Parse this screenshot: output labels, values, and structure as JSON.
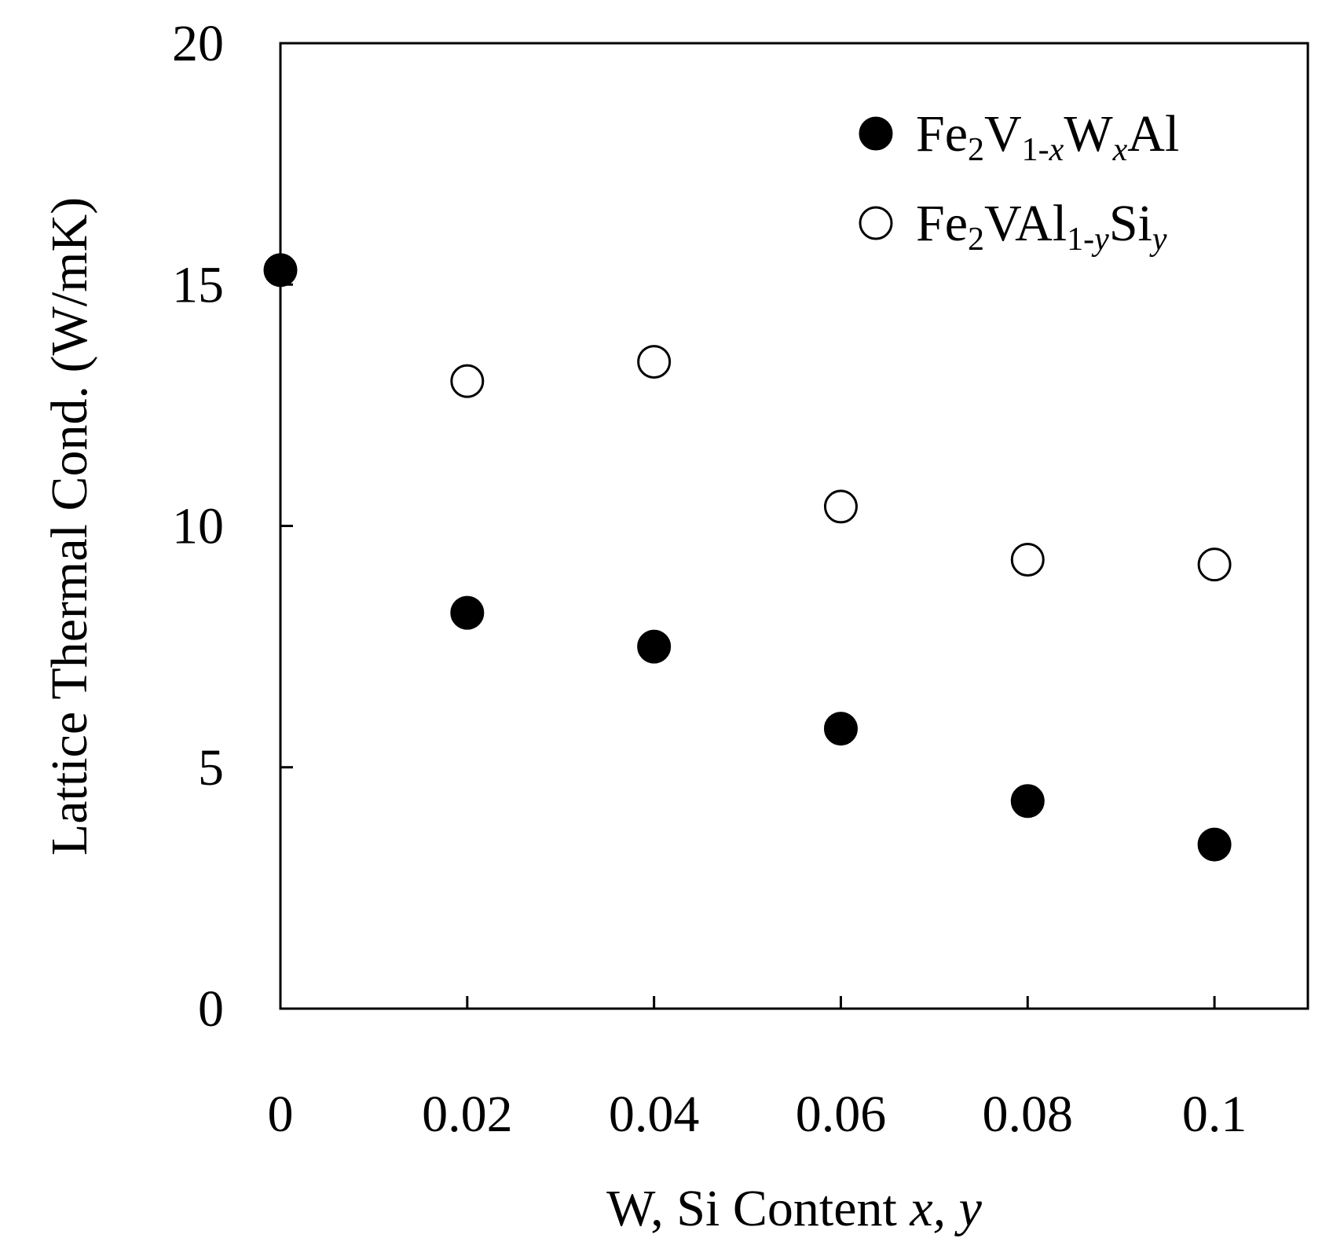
{
  "chart_data": {
    "type": "scatter",
    "x_ticks": [
      "0",
      "0.02",
      "0.04",
      "0.06",
      "0.08",
      "0.1"
    ],
    "y_ticks": [
      "0",
      "5",
      "10",
      "15",
      "20"
    ],
    "xlim": [
      0,
      0.11
    ],
    "ylim": [
      0,
      20
    ],
    "grid": false,
    "legend_position": "top-right",
    "xlabel": {
      "text": "W, Si Content ",
      "italic": "x, y"
    },
    "ylabel": "Lattice Thermal Cond. (W/mK)",
    "series": [
      {
        "marker": "filled-circle",
        "color": "#000000",
        "legend": {
          "base1": "Fe",
          "sub1": "2",
          "base2": "V",
          "sub2": "1-",
          "sub2_italic": "x",
          "base3": "W",
          "sub3_italic": "x",
          "base4": "Al"
        },
        "x": [
          0,
          0.02,
          0.04,
          0.06,
          0.08,
          0.1
        ],
        "y": [
          15.3,
          8.2,
          7.5,
          5.8,
          4.3,
          3.4
        ]
      },
      {
        "marker": "open-circle",
        "color": "#000000",
        "legend": {
          "base1": "Fe",
          "sub1": "2",
          "base2": "VAl",
          "sub2": "1-",
          "sub2_italic": "y",
          "base3": "Si",
          "sub3_italic": "y",
          "base4": ""
        },
        "x": [
          0.02,
          0.04,
          0.06,
          0.08,
          0.1
        ],
        "y": [
          13.0,
          13.4,
          10.4,
          9.3,
          9.2
        ]
      }
    ]
  }
}
